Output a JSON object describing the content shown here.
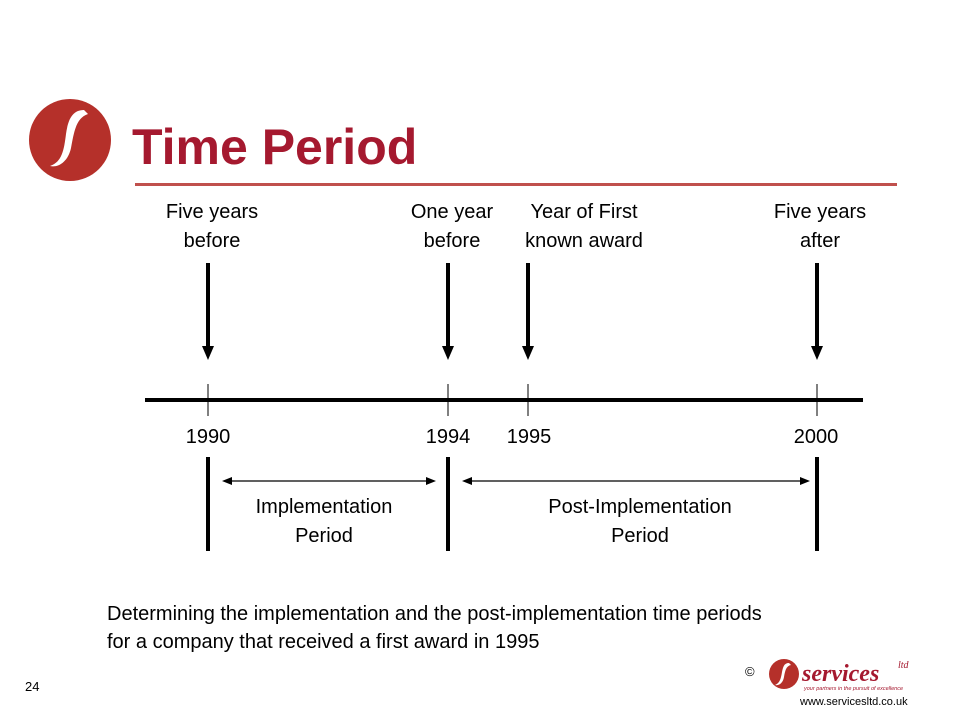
{
  "slide": {
    "title": "Time Period",
    "accent_color": "#a5192f",
    "page_number": "24",
    "copyright": "©",
    "brand": {
      "name": "services",
      "superscript": "ltd",
      "tagline": "your partners in the pursuit of excellence",
      "url": "www.servicesltd.co.uk"
    }
  },
  "timeline": {
    "markers": [
      {
        "label_line1": "Five years",
        "label_line2": "before",
        "year": "1990"
      },
      {
        "label_line1": "One year",
        "label_line2": "before",
        "year": "1994"
      },
      {
        "label_line1": "Year of First",
        "label_line2": "known award",
        "year": "1995"
      },
      {
        "label_line1": "Five years",
        "label_line2": "after",
        "year": "2000"
      }
    ],
    "periods": [
      {
        "line1": "Implementation",
        "line2": "Period"
      },
      {
        "line1": "Post-Implementation",
        "line2": "Period"
      }
    ]
  },
  "caption": {
    "line1": "Determining the implementation and the post-implementation time periods",
    "line2": "for a company that received a first award in 1995"
  }
}
